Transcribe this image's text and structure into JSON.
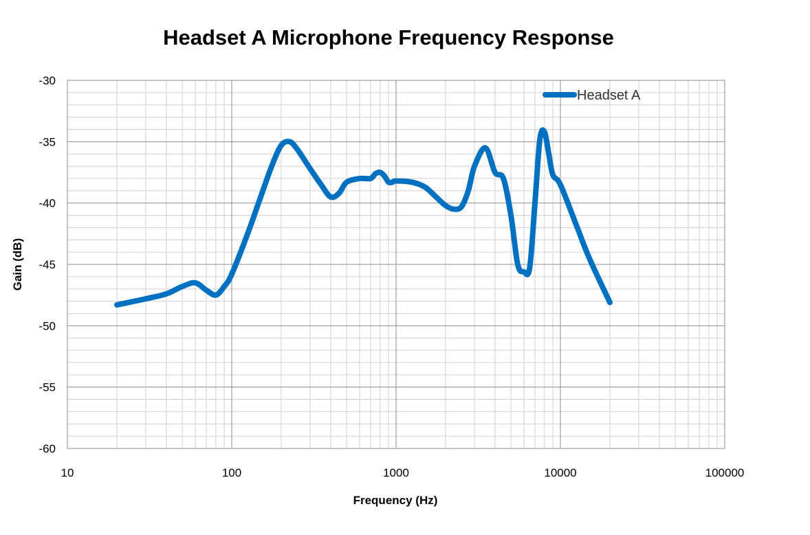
{
  "chart_data": {
    "type": "line",
    "title": "Headset A Microphone Frequency Response",
    "xlabel": "Frequency (Hz)",
    "ylabel": "Gain (dB)",
    "x_scale": "log",
    "xlim": [
      10,
      100000
    ],
    "ylim": [
      -60,
      -30
    ],
    "x_ticks": [
      10,
      100,
      1000,
      10000,
      100000
    ],
    "x_tick_labels": [
      "10",
      "100",
      "1000",
      "10000",
      "100000"
    ],
    "y_ticks": [
      -60,
      -55,
      -50,
      -45,
      -40,
      -35,
      -30
    ],
    "y_tick_labels": [
      "-60",
      "-55",
      "-50",
      "-45",
      "-40",
      "-35",
      "-30"
    ],
    "grid": true,
    "legend_position": "top-right",
    "series": [
      {
        "name": "Headset A",
        "color": "#0070C0",
        "x": [
          20,
          30,
          40,
          50,
          60,
          70,
          80,
          90,
          100,
          125,
          150,
          175,
          200,
          225,
          250,
          300,
          350,
          400,
          450,
          500,
          600,
          700,
          750,
          800,
          850,
          900,
          950,
          1000,
          1250,
          1500,
          1750,
          2000,
          2250,
          2500,
          2750,
          3000,
          3500,
          4000,
          4500,
          5000,
          5500,
          6000,
          6500,
          7000,
          7500,
          8000,
          8500,
          9000,
          10000,
          12500,
          15000,
          20000
        ],
        "y": [
          -48.3,
          -47.8,
          -47.4,
          -46.8,
          -46.5,
          -47.1,
          -47.5,
          -46.8,
          -45.8,
          -42.5,
          -39.5,
          -37.0,
          -35.3,
          -35.0,
          -35.6,
          -37.2,
          -38.5,
          -39.5,
          -39.2,
          -38.3,
          -38.0,
          -38.0,
          -37.6,
          -37.5,
          -37.8,
          -38.3,
          -38.3,
          -38.2,
          -38.3,
          -38.7,
          -39.5,
          -40.2,
          -40.5,
          -40.3,
          -39.0,
          -37.0,
          -35.5,
          -37.5,
          -38.0,
          -41.0,
          -45.0,
          -45.6,
          -45.3,
          -40.0,
          -34.8,
          -34.2,
          -36.0,
          -37.7,
          -38.5,
          -41.8,
          -44.5,
          -48.1
        ]
      }
    ]
  }
}
